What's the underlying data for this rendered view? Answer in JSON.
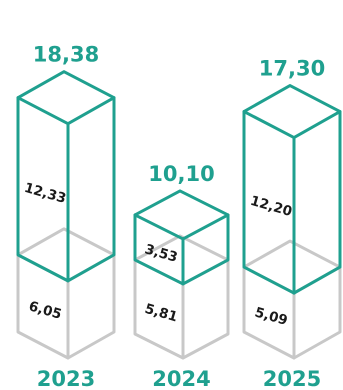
{
  "colors": {
    "accent": "#1fa08f",
    "lower": "#c8c8c8",
    "year_text": "#1fa08f",
    "segment_text": "#1a1a1a"
  },
  "chart_data": {
    "type": "bar",
    "style": "stacked 3D boxes",
    "categories": [
      "2023",
      "2024",
      "2025"
    ],
    "series": [
      {
        "values": [
          6.05,
          5.81,
          5.09
        ]
      },
      {
        "values": [
          12.33,
          3.53,
          12.2
        ]
      }
    ],
    "totals": [
      18.38,
      10.1,
      17.3
    ],
    "labels": {
      "lower": [
        "6,05",
        "5,81",
        "5,09"
      ],
      "upper": [
        "12,33",
        "3,53",
        "12,20"
      ],
      "totals": [
        "18,38",
        "10,10",
        "17,30"
      ],
      "years": [
        "2023",
        "2024",
        "2025"
      ]
    }
  }
}
